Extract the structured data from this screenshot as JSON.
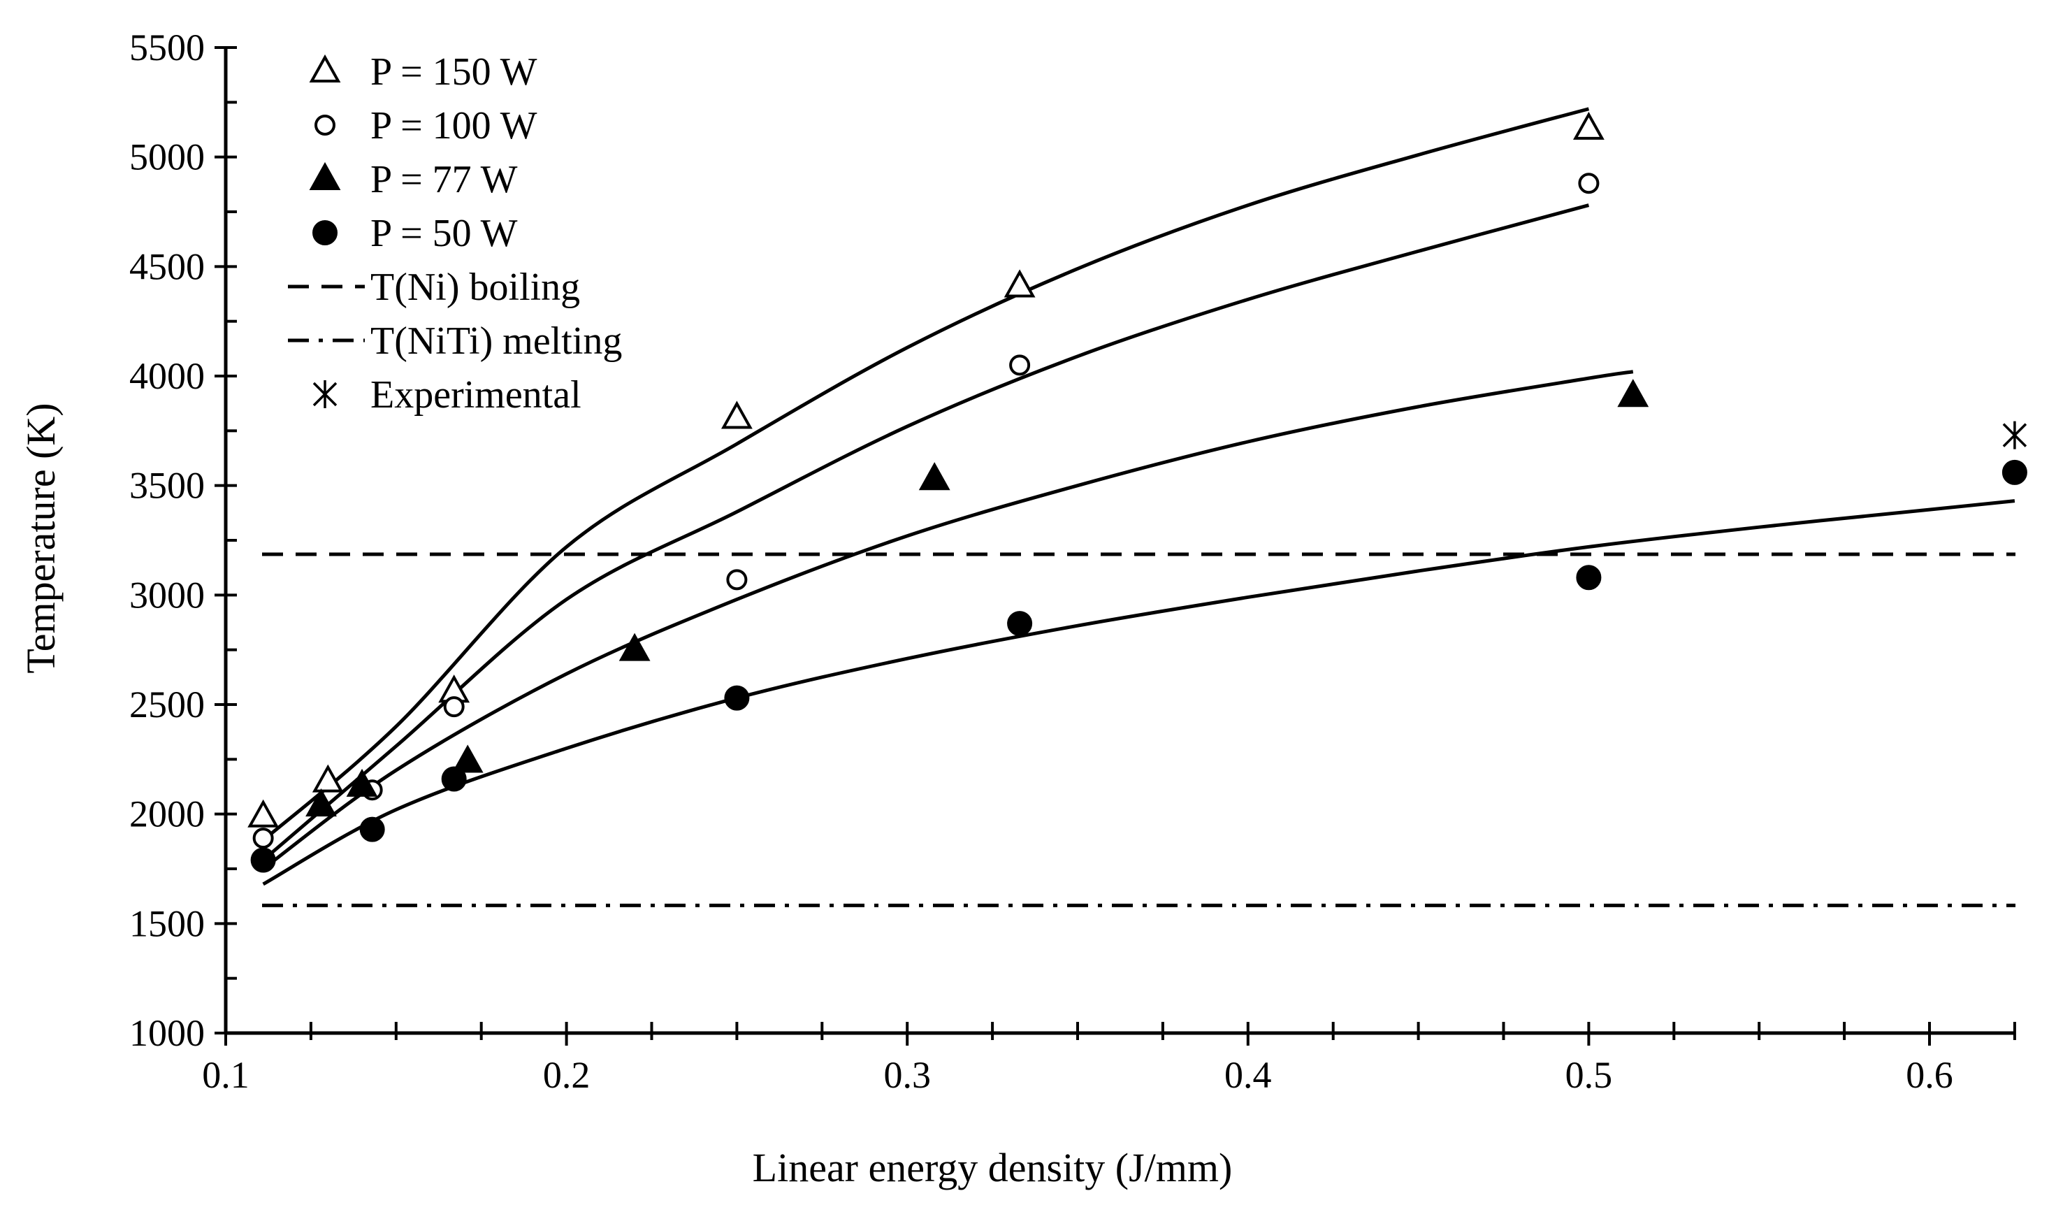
{
  "chart_data": {
    "type": "scatter",
    "title": "",
    "xlabel": "Linear energy density (J/mm)",
    "ylabel": "Temperature (K)",
    "xlim": [
      0.1,
      0.625
    ],
    "ylim": [
      1000,
      5500
    ],
    "x_ticks": [
      0.1,
      0.2,
      0.3,
      0.4,
      0.5,
      0.6
    ],
    "x_tick_labels": [
      "0.1",
      "0.2",
      "0.3",
      "0.4",
      "0.5",
      "0.6"
    ],
    "x_minor_step": 0.025,
    "y_ticks": [
      1000,
      1500,
      2000,
      2500,
      3000,
      3500,
      4000,
      4500,
      5000,
      5500
    ],
    "y_tick_labels": [
      "1000",
      "1500",
      "2000",
      "2500",
      "3000",
      "3500",
      "4000",
      "4500",
      "5000",
      "5500"
    ],
    "y_minor_step": 250,
    "legend_position": "top-left",
    "series": [
      {
        "name": "P = 150 W",
        "marker": "triangle-open",
        "points": [
          [
            0.111,
            1990
          ],
          [
            0.13,
            2150
          ],
          [
            0.167,
            2560
          ],
          [
            0.25,
            3810
          ],
          [
            0.333,
            4410
          ],
          [
            0.5,
            5130
          ]
        ],
        "fit": [
          [
            0.111,
            1880
          ],
          [
            0.15,
            2400
          ],
          [
            0.2,
            3220
          ],
          [
            0.25,
            3690
          ],
          [
            0.3,
            4130
          ],
          [
            0.35,
            4490
          ],
          [
            0.4,
            4780
          ],
          [
            0.45,
            5010
          ],
          [
            0.5,
            5220
          ]
        ]
      },
      {
        "name": "P = 100 W",
        "marker": "circle-open",
        "points": [
          [
            0.111,
            1890
          ],
          [
            0.143,
            2110
          ],
          [
            0.167,
            2490
          ],
          [
            0.25,
            3070
          ],
          [
            0.333,
            4050
          ],
          [
            0.5,
            4880
          ]
        ],
        "fit": [
          [
            0.111,
            1790
          ],
          [
            0.15,
            2310
          ],
          [
            0.2,
            2980
          ],
          [
            0.25,
            3380
          ],
          [
            0.3,
            3770
          ],
          [
            0.35,
            4090
          ],
          [
            0.4,
            4350
          ],
          [
            0.45,
            4570
          ],
          [
            0.5,
            4780
          ]
        ]
      },
      {
        "name": "P = 77 W",
        "marker": "triangle-filled",
        "points": [
          [
            0.128,
            2040
          ],
          [
            0.14,
            2130
          ],
          [
            0.171,
            2240
          ],
          [
            0.22,
            2750
          ],
          [
            0.308,
            3530
          ],
          [
            0.513,
            3910
          ]
        ],
        "fit": [
          [
            0.111,
            1750
          ],
          [
            0.15,
            2200
          ],
          [
            0.2,
            2640
          ],
          [
            0.25,
            2980
          ],
          [
            0.3,
            3270
          ],
          [
            0.35,
            3500
          ],
          [
            0.4,
            3700
          ],
          [
            0.45,
            3860
          ],
          [
            0.5,
            3990
          ],
          [
            0.513,
            4020
          ]
        ]
      },
      {
        "name": "P = 50 W",
        "marker": "circle-filled",
        "points": [
          [
            0.111,
            1790
          ],
          [
            0.143,
            1930
          ],
          [
            0.167,
            2160
          ],
          [
            0.25,
            2530
          ],
          [
            0.333,
            2870
          ],
          [
            0.5,
            3080
          ],
          [
            0.625,
            3560
          ]
        ],
        "fit": [
          [
            0.111,
            1680
          ],
          [
            0.15,
            2020
          ],
          [
            0.2,
            2300
          ],
          [
            0.25,
            2530
          ],
          [
            0.3,
            2710
          ],
          [
            0.35,
            2860
          ],
          [
            0.4,
            2990
          ],
          [
            0.45,
            3110
          ],
          [
            0.5,
            3220
          ],
          [
            0.55,
            3310
          ],
          [
            0.6,
            3390
          ],
          [
            0.625,
            3430
          ]
        ]
      },
      {
        "name": "T(Ni) boiling",
        "marker": "dashed-line",
        "y": 3186
      },
      {
        "name": "T(NiTi) melting",
        "marker": "dashdot-line",
        "y": 1583
      },
      {
        "name": "Experimental",
        "marker": "asterisk",
        "points": [
          [
            0.625,
            3730
          ]
        ]
      }
    ]
  }
}
